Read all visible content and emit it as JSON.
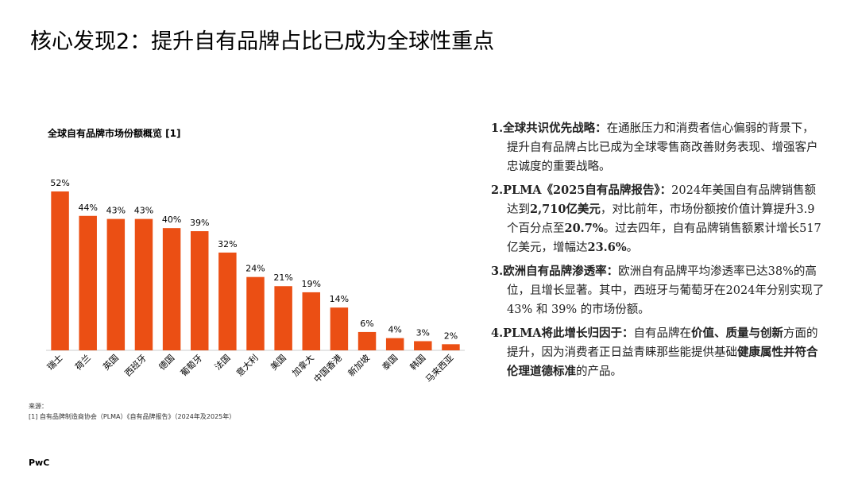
{
  "header": {
    "title": "核心发现2：提升自有品牌占比已成为全球性重点"
  },
  "chart_data": {
    "type": "bar",
    "title": "全球自有品牌市场份额概览 [1]",
    "categories": [
      "瑞士",
      "荷兰",
      "英国",
      "西班牙",
      "德国",
      "葡萄牙",
      "法国",
      "意大利",
      "美国",
      "加拿大",
      "中国香港",
      "新加坡",
      "泰国",
      "韩国",
      "马来西亚"
    ],
    "values": [
      52,
      44,
      43,
      43,
      40,
      39,
      32,
      24,
      21,
      19,
      14,
      6,
      4,
      3,
      2
    ],
    "value_labels": [
      "52%",
      "44%",
      "43%",
      "43%",
      "40%",
      "39%",
      "32%",
      "24%",
      "21%",
      "19%",
      "14%",
      "6%",
      "4%",
      "3%",
      "2%"
    ],
    "color": "#eb4f14"
  },
  "bullets": [
    [
      {
        "text": "1.全球共识优先战略：",
        "bold": true
      },
      {
        "text": "在通胀压力和消费者信心偏弱的背景下，提升自有品牌占比已成为全球零售商改善财务表现、增强客户忠诚度的重要战略。",
        "bold": false
      }
    ],
    [
      {
        "text": "2.PLMA《2025自有品牌报告》：",
        "bold": true
      },
      {
        "text": "2024年美国自有品牌销售额达到",
        "bold": false
      },
      {
        "text": "2,710亿美元",
        "bold": true
      },
      {
        "text": "，对比前年，市场份额按价值计算提升3.9个百分点至",
        "bold": false
      },
      {
        "text": "20.7%",
        "bold": true
      },
      {
        "text": "。过去四年，自有品牌销售额累计增长517亿美元，增幅达",
        "bold": false
      },
      {
        "text": "23.6%",
        "bold": true
      },
      {
        "text": "。",
        "bold": false
      }
    ],
    [
      {
        "text": "3.欧洲自有品牌渗透率：",
        "bold": true
      },
      {
        "text": "欧洲自有品牌平均渗透率已达38%的高位，且增长显著。其中，西班牙与葡萄牙在2024年分别实现了43% 和 39% 的市场份额。",
        "bold": false
      }
    ],
    [
      {
        "text": "4.PLMA将此增长归因于：",
        "bold": true
      },
      {
        "text": "自有品牌在",
        "bold": false
      },
      {
        "text": "价值、质量与创新",
        "bold": true
      },
      {
        "text": "方面的提升，因为消费者正日益青睐那些能提供基础",
        "bold": false
      },
      {
        "text": "健康属性并符合伦理道德标准",
        "bold": true
      },
      {
        "text": "的产品。",
        "bold": false
      }
    ]
  ],
  "source": {
    "heading": "来源：",
    "note": "[1] 自有品牌制造商协会（PLMA）《自有品牌报告》（2024年及2025年）"
  },
  "footer": "PwC"
}
